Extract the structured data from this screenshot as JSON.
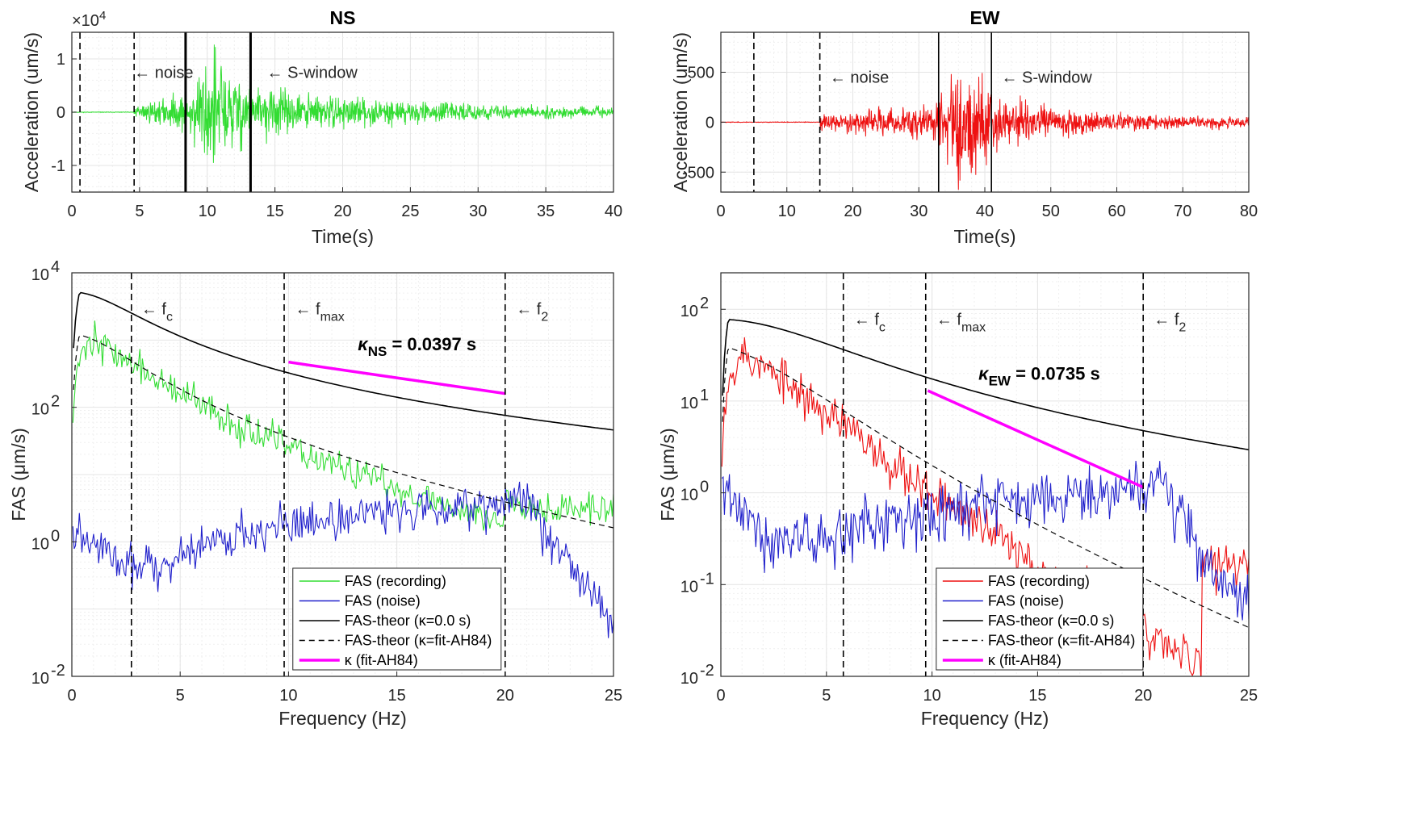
{
  "colors": {
    "ns_recording": "#33dd33",
    "ew_recording": "#ee1111",
    "noise": "#2222cc",
    "theor": "#000000",
    "fit": "#ff00ff"
  },
  "chart_data": [
    {
      "id": "ns_time",
      "type": "line",
      "title": "NS",
      "xlabel": "Time(s)",
      "ylabel": "Acceleration (um/s)",
      "exponent_label": "×10",
      "exponent_power": "4",
      "xlim": [
        0,
        40
      ],
      "ylim": [
        -1.5,
        1.5
      ],
      "xticks": [
        "0",
        "5",
        "10",
        "15",
        "20",
        "25",
        "30",
        "35",
        "40"
      ],
      "yticks": [
        "-1",
        "0",
        "1"
      ],
      "dashed_lines_x": [
        0.6,
        4.6
      ],
      "solid_lines_x": [
        8.4,
        13.2
      ],
      "annotations": [
        {
          "text": "← noise",
          "x": 4.6,
          "y": 0.75
        },
        {
          "text": "← S-window",
          "x": 14.4,
          "y": 0.75
        }
      ],
      "signal": {
        "name": "recording",
        "onset": 4.6,
        "peak_window": [
          8.4,
          13.2
        ],
        "peak_amplitude": 1.4,
        "end": 40
      }
    },
    {
      "id": "ew_time",
      "type": "line",
      "title": "EW",
      "xlabel": "Time(s)",
      "ylabel": "Acceleration (um/s)",
      "xlim": [
        0,
        80
      ],
      "ylim": [
        -700,
        900
      ],
      "xticks": [
        "0",
        "10",
        "20",
        "30",
        "40",
        "50",
        "60",
        "70",
        "80"
      ],
      "yticks": [
        "-500",
        "0",
        "500"
      ],
      "dashed_lines_x": [
        5,
        15
      ],
      "solid_lines_x": [
        33,
        41
      ],
      "annotations": [
        {
          "text": "← noise",
          "x": 16.5,
          "y": 450
        },
        {
          "text": "← S-window",
          "x": 42.5,
          "y": 450
        }
      ],
      "signal": {
        "name": "recording",
        "onset": 15,
        "peak_window": [
          33,
          41
        ],
        "peak_amplitude": 780,
        "end": 80
      }
    },
    {
      "id": "ns_fas",
      "type": "line",
      "xlabel": "Frequency (Hz)",
      "ylabel": "FAS (μm/s)",
      "yscale": "log",
      "xlim": [
        0,
        25
      ],
      "ylim": [
        0.01,
        10000
      ],
      "xticks": [
        "0",
        "5",
        "10",
        "15",
        "20",
        "25"
      ],
      "yticks": [
        {
          "base": "10",
          "exp": "-2"
        },
        {
          "base": "10",
          "exp": "0"
        },
        {
          "base": "10",
          "exp": "2"
        },
        {
          "base": "10",
          "exp": "4"
        }
      ],
      "dashed_lines_x": [
        2.75,
        9.8,
        20
      ],
      "annotations": [
        {
          "text": "← f",
          "sub": "c",
          "x": 3.2,
          "y": 3000
        },
        {
          "text": "← f",
          "sub": "max",
          "x": 10.3,
          "y": 3000
        },
        {
          "text": "← f",
          "sub": "2",
          "x": 20.5,
          "y": 3000
        }
      ],
      "kappa_label": {
        "prefix": "κ",
        "sub": "NS",
        "text": " = 0.0397 s",
        "x": 13.2,
        "y": 700
      },
      "theor_params": {
        "fc": 2.75,
        "omega_theor": 5200,
        "omega_fit": 1250,
        "kappa": 0.0397,
        "kappa0": 0.0
      },
      "fit_line": {
        "x": [
          10,
          20
        ],
        "y": [
          470,
          160
        ]
      },
      "recording_envelope": {
        "name": "FAS (recording)",
        "high_cut": 20,
        "end_value": 5
      },
      "noise_envelope": {
        "name": "FAS (noise)",
        "low": 0.45,
        "high": 4,
        "end_value": 0.02
      },
      "legend": [
        {
          "label": "FAS (recording)",
          "style": "ns_recording"
        },
        {
          "label": "FAS (noise)",
          "style": "noise"
        },
        {
          "label": "FAS-theor (κ=0.0 s)",
          "style": "theor"
        },
        {
          "label": "FAS-theor (κ=fit-AH84)",
          "style": "theor_dashed"
        },
        {
          "label": "κ (fit-AH84)",
          "style": "fit"
        }
      ]
    },
    {
      "id": "ew_fas",
      "type": "line",
      "xlabel": "Frequency (Hz)",
      "ylabel": "FAS (μm/s)",
      "yscale": "log",
      "xlim": [
        0,
        25
      ],
      "ylim": [
        0.01,
        250
      ],
      "xticks": [
        "0",
        "5",
        "10",
        "15",
        "20",
        "25"
      ],
      "yticks": [
        {
          "base": "10",
          "exp": "-2"
        },
        {
          "base": "10",
          "exp": "-1"
        },
        {
          "base": "10",
          "exp": "0"
        },
        {
          "base": "10",
          "exp": "1"
        },
        {
          "base": "10",
          "exp": "2"
        }
      ],
      "dashed_lines_x": [
        5.8,
        9.7,
        20
      ],
      "annotations": [
        {
          "text": "← f",
          "sub": "c",
          "x": 6.3,
          "y": 80
        },
        {
          "text": "← f",
          "sub": "max",
          "x": 10.2,
          "y": 80
        },
        {
          "text": "← f",
          "sub": "2",
          "x": 20.5,
          "y": 80
        }
      ],
      "kappa_label": {
        "prefix": "κ",
        "sub": "EW",
        "text": " = 0.0735 s",
        "x": 12.2,
        "y": 17
      },
      "theor_params": {
        "fc": 5.8,
        "omega_theor": 78,
        "omega_fit": 41,
        "kappa": 0.0735,
        "kappa0": 0.0
      },
      "fit_line": {
        "x": [
          9.8,
          20
        ],
        "y": [
          13,
          1.15
        ]
      },
      "recording_envelope": {
        "name": "FAS (recording)",
        "high_cut": 22.8,
        "end_value": 0.28
      },
      "noise_envelope": {
        "name": "FAS (noise)",
        "low": 0.3,
        "high": 1.2,
        "end_value": 0.05
      },
      "legend": [
        {
          "label": "FAS (recording)",
          "style": "ew_recording"
        },
        {
          "label": "FAS (noise)",
          "style": "noise"
        },
        {
          "label": "FAS-theor (κ=0.0 s)",
          "style": "theor"
        },
        {
          "label": "FAS-theor (κ=fit-AH84)",
          "style": "theor_dashed"
        },
        {
          "label": "κ (fit-AH84)",
          "style": "fit"
        }
      ]
    }
  ]
}
